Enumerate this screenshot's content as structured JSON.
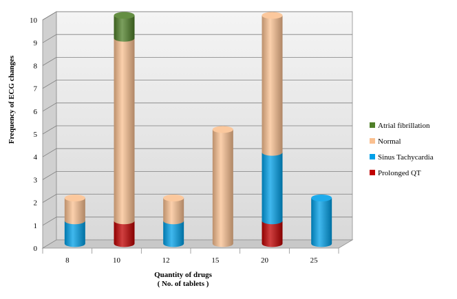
{
  "chart_data": {
    "type": "bar",
    "stacked": true,
    "style": "3d-cylinder",
    "title": "",
    "xlabel": "Quantity of drugs",
    "xlabel_line2": "( No. of tablets )",
    "ylabel": "Frequency of ECG changes",
    "ylim": [
      0,
      10
    ],
    "yticks": [
      0,
      1,
      2,
      3,
      4,
      5,
      6,
      7,
      8,
      9,
      10
    ],
    "categories": [
      "8",
      "10",
      "12",
      "15",
      "20",
      "25"
    ],
    "grid": true,
    "legend_position": "right",
    "series": [
      {
        "name": "Prolonged QT",
        "color": "#c00000",
        "values": [
          0,
          1,
          0,
          0,
          1,
          0
        ]
      },
      {
        "name": "Sinus Tachycardia",
        "color": "#00a0e8",
        "values": [
          1,
          0,
          1,
          0,
          3,
          2
        ]
      },
      {
        "name": "Normal",
        "color": "#fac090",
        "values": [
          1,
          8,
          1,
          5,
          6,
          0
        ]
      },
      {
        "name": "Atrial fibrillation",
        "color": "#4f7f28",
        "values": [
          0,
          1,
          0,
          0,
          0,
          0
        ]
      }
    ],
    "legend_order": [
      "Atrial fibrillation",
      "Normal",
      "Sinus Tachycardia",
      "Prolonged QT"
    ]
  }
}
